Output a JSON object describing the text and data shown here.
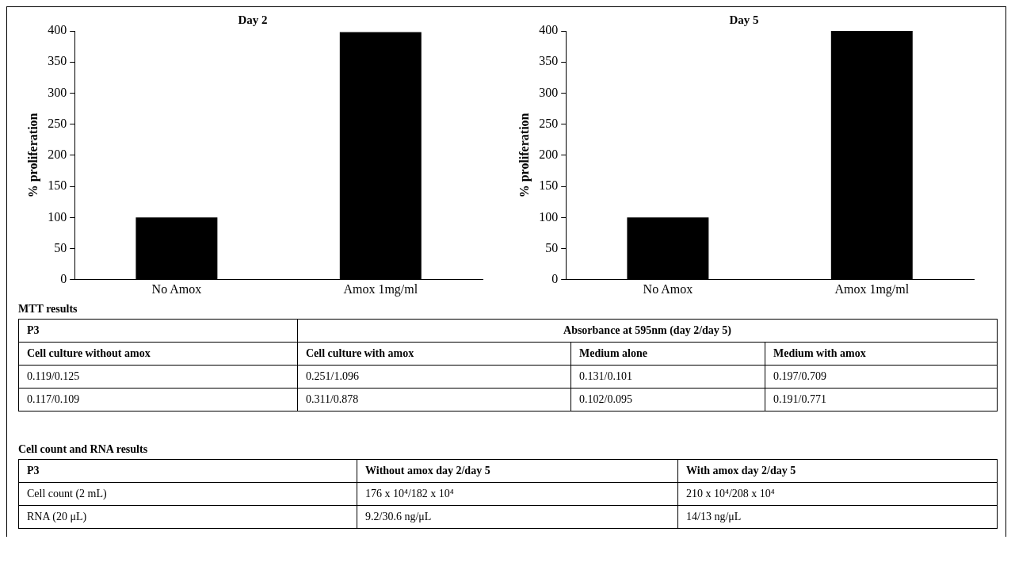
{
  "chart_data": [
    {
      "type": "bar",
      "title": "Day 2",
      "ylabel": "% proliferation",
      "categories": [
        "No Amox",
        "Amox 1mg/ml"
      ],
      "values": [
        100,
        398
      ],
      "color": "#000000",
      "ylim": [
        0,
        400
      ],
      "yticks": [
        0,
        50,
        100,
        150,
        200,
        250,
        300,
        350,
        400
      ],
      "grid": false
    },
    {
      "type": "bar",
      "title": "Day 5",
      "ylabel": "% proliferation",
      "categories": [
        "No Amox",
        "Amox 1mg/ml"
      ],
      "values": [
        100,
        400
      ],
      "color": "#000000",
      "ylim": [
        0,
        400
      ],
      "yticks": [
        0,
        50,
        100,
        150,
        200,
        250,
        300,
        350,
        400
      ],
      "grid": false
    },
    {
      "type": "other",
      "title": "MTT results",
      "annotations": [
        "P3",
        "Absorbance at 595nm (day 2/day 5)",
        "Cell culture without amox",
        "Cell culture with amox",
        "Medium alone",
        "Medium with amox",
        "0.119/0.125",
        "0.251/1.096",
        "0.131/0.101",
        "0.197/0.709",
        "0.117/0.109",
        "0.311/0.878",
        "0.102/0.095",
        "0.191/0.771"
      ]
    },
    {
      "type": "other",
      "title": "Cell count and RNA results",
      "annotations": [
        "P3",
        "Without amox day 2/day 5",
        "With amox day 2/day 5",
        "Cell count (2 mL)",
        "176 x 10⁴/182 x 10⁴",
        "210 x 10⁴/208 x 10⁴",
        "RNA (20 μL)",
        "9.2/30.6 ng/μL",
        "14/13 ng/μL"
      ]
    }
  ]
}
